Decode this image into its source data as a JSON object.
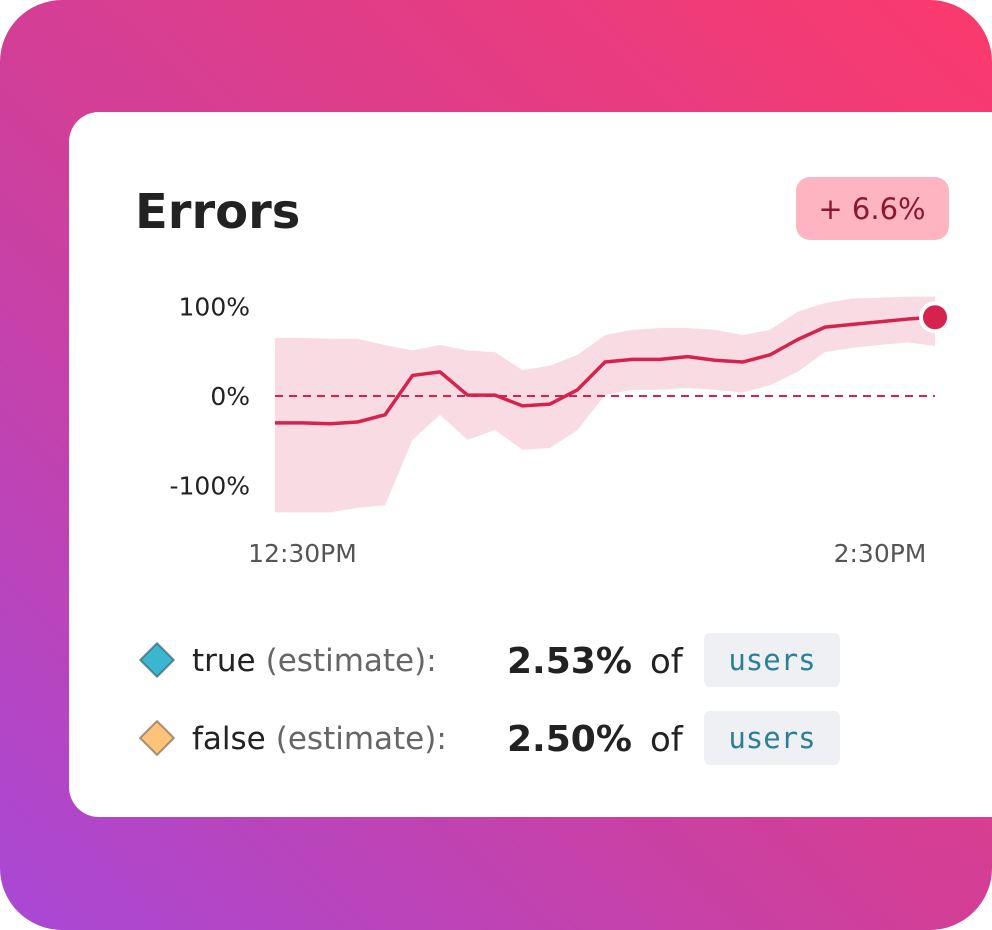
{
  "chart_data": {
    "type": "line",
    "title": "Errors",
    "badge": "+ 6.6%",
    "categories": [
      null,
      "12:30PM",
      null,
      null,
      null,
      null,
      null,
      null,
      null,
      null,
      null,
      null,
      null,
      null,
      null,
      null,
      null,
      null,
      null,
      null,
      null,
      null,
      "2:30PM",
      null,
      null
    ],
    "values": [
      -30,
      -30,
      -31,
      -29,
      -21,
      23,
      27,
      1,
      1,
      -11,
      -9,
      7,
      38,
      41,
      41,
      44,
      40,
      38,
      46,
      63,
      77,
      80,
      83,
      86,
      88
    ],
    "band_upper": [
      65,
      65,
      64,
      64,
      57,
      51,
      57,
      51,
      49,
      29,
      34,
      46,
      68,
      74,
      76,
      76,
      74,
      68,
      74,
      94,
      104,
      109,
      110,
      111,
      111
    ],
    "band_lower": [
      -130,
      -130,
      -130,
      -125,
      -122,
      -49,
      -21,
      -49,
      -38,
      -60,
      -58,
      -38,
      1,
      7,
      7,
      9,
      7,
      4,
      12,
      27,
      49,
      54,
      57,
      60,
      56
    ],
    "color": "#d6224f",
    "band_color": "#f9dce3",
    "ylim": [
      -130,
      115
    ],
    "yticks": [
      {
        "value": -100,
        "label": "-100%"
      },
      {
        "value": 0,
        "label": "0%"
      },
      {
        "value": 100,
        "label": "100%"
      }
    ],
    "reference_line": 0
  },
  "summary": [
    {
      "label": "true",
      "qualifier": "(estimate):",
      "value": "2.53%",
      "connector": "of",
      "unit": "users",
      "color": "#3bb5d0"
    },
    {
      "label": "false",
      "qualifier": "(estimate):",
      "value": "2.50%",
      "connector": "of",
      "unit": "users",
      "color": "#ffc27a"
    }
  ]
}
